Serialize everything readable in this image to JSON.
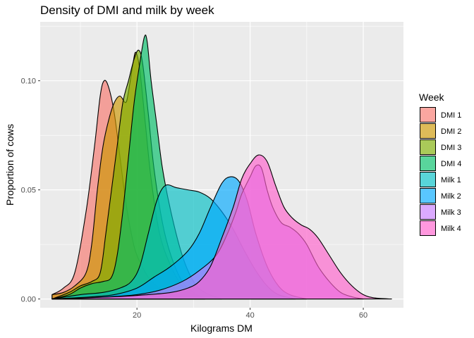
{
  "chart_data": {
    "type": "area",
    "title": "Density of DMI and milk by week",
    "xlabel": "Kilograms DM",
    "ylabel": "Proportion of cows",
    "xlim": [
      2.9,
      67.1
    ],
    "ylim": [
      -0.004,
      0.127
    ],
    "x_ticks": [
      20,
      40,
      60
    ],
    "x_tick_labels": [
      "20",
      "40",
      "60"
    ],
    "y_ticks": [
      0.0,
      0.05,
      0.1
    ],
    "y_tick_labels": [
      "0.00",
      "0.05",
      "0.10"
    ],
    "grid": true,
    "legend": {
      "title": "Week",
      "placement": "right",
      "entries": [
        "DMI 1",
        "DMI 2",
        "DMI 3",
        "DMI 4",
        "Milk 1",
        "Milk 2",
        "Milk 3",
        "Milk 4"
      ]
    },
    "fill_opacity": 0.65,
    "series": [
      {
        "name": "DMI 1",
        "color": "#F8766D",
        "points": [
          [
            5,
            0.002
          ],
          [
            7,
            0.005
          ],
          [
            9,
            0.012
          ],
          [
            11,
            0.04
          ],
          [
            12.5,
            0.07
          ],
          [
            13.5,
            0.093
          ],
          [
            14.2,
            0.1
          ],
          [
            15,
            0.097
          ],
          [
            16,
            0.085
          ],
          [
            17,
            0.065
          ],
          [
            18,
            0.045
          ],
          [
            19,
            0.03
          ],
          [
            20,
            0.02
          ],
          [
            22,
            0.01
          ],
          [
            24,
            0.005
          ],
          [
            26,
            0.002
          ],
          [
            28,
            0
          ]
        ]
      },
      {
        "name": "DMI 2",
        "color": "#CD9600",
        "points": [
          [
            5,
            0.002
          ],
          [
            7,
            0.003
          ],
          [
            9,
            0.006
          ],
          [
            11,
            0.012
          ],
          [
            12,
            0.025
          ],
          [
            13,
            0.05
          ],
          [
            14,
            0.07
          ],
          [
            15,
            0.082
          ],
          [
            16,
            0.09
          ],
          [
            17,
            0.093
          ],
          [
            18,
            0.09
          ],
          [
            18.5,
            0.095
          ],
          [
            19.3,
            0.108
          ],
          [
            19.8,
            0.113
          ],
          [
            20.5,
            0.105
          ],
          [
            21.5,
            0.08
          ],
          [
            22.5,
            0.055
          ],
          [
            24,
            0.03
          ],
          [
            26,
            0.015
          ],
          [
            28,
            0.006
          ],
          [
            30,
            0.002
          ],
          [
            32,
            0
          ]
        ]
      },
      {
        "name": "DMI 3",
        "color": "#7CAE00",
        "points": [
          [
            5,
            0
          ],
          [
            8,
            0.003
          ],
          [
            10,
            0.006
          ],
          [
            12,
            0.008
          ],
          [
            13.5,
            0.012
          ],
          [
            14.5,
            0.03
          ],
          [
            15.5,
            0.05
          ],
          [
            16.5,
            0.07
          ],
          [
            17.5,
            0.09
          ],
          [
            18.5,
            0.1
          ],
          [
            19.5,
            0.11
          ],
          [
            20.3,
            0.114
          ],
          [
            21,
            0.108
          ],
          [
            22,
            0.085
          ],
          [
            23,
            0.06
          ],
          [
            24.5,
            0.035
          ],
          [
            26,
            0.02
          ],
          [
            28,
            0.008
          ],
          [
            30,
            0.003
          ],
          [
            32,
            0
          ]
        ]
      },
      {
        "name": "DMI 4",
        "color": "#00BE67",
        "points": [
          [
            5,
            0
          ],
          [
            8,
            0.002
          ],
          [
            10,
            0.005
          ],
          [
            12,
            0.007
          ],
          [
            14,
            0.008
          ],
          [
            15.5,
            0.01
          ],
          [
            16.5,
            0.02
          ],
          [
            17.5,
            0.04
          ],
          [
            18.5,
            0.065
          ],
          [
            19.5,
            0.09
          ],
          [
            20.5,
            0.108
          ],
          [
            21.3,
            0.12
          ],
          [
            21.8,
            0.118
          ],
          [
            22.5,
            0.1
          ],
          [
            23.5,
            0.08
          ],
          [
            24.5,
            0.06
          ],
          [
            26,
            0.04
          ],
          [
            28,
            0.02
          ],
          [
            30,
            0.008
          ],
          [
            32,
            0.003
          ],
          [
            35,
            0
          ]
        ]
      },
      {
        "name": "Milk 1",
        "color": "#00BFC4",
        "points": [
          [
            5,
            0
          ],
          [
            10,
            0.002
          ],
          [
            14,
            0.003
          ],
          [
            17,
            0.005
          ],
          [
            19,
            0.008
          ],
          [
            20.5,
            0.015
          ],
          [
            22,
            0.03
          ],
          [
            23.5,
            0.045
          ],
          [
            25,
            0.052
          ],
          [
            27,
            0.051
          ],
          [
            29,
            0.05
          ],
          [
            31,
            0.049
          ],
          [
            33,
            0.046
          ],
          [
            35,
            0.04
          ],
          [
            37,
            0.032
          ],
          [
            39,
            0.022
          ],
          [
            41,
            0.013
          ],
          [
            43,
            0.006
          ],
          [
            45,
            0.002
          ],
          [
            48,
            0
          ]
        ]
      },
      {
        "name": "Milk 2",
        "color": "#00A9FF",
        "points": [
          [
            5,
            0
          ],
          [
            12,
            0.001
          ],
          [
            16,
            0.002
          ],
          [
            20,
            0.005
          ],
          [
            23,
            0.01
          ],
          [
            26,
            0.015
          ],
          [
            29,
            0.022
          ],
          [
            31,
            0.03
          ],
          [
            33,
            0.042
          ],
          [
            35,
            0.053
          ],
          [
            36.5,
            0.056
          ],
          [
            38,
            0.054
          ],
          [
            39.5,
            0.045
          ],
          [
            41,
            0.03
          ],
          [
            43,
            0.015
          ],
          [
            45,
            0.006
          ],
          [
            47,
            0.002
          ],
          [
            50,
            0
          ]
        ]
      },
      {
        "name": "Milk 3",
        "color": "#C77CFF",
        "points": [
          [
            5,
            0
          ],
          [
            15,
            0.001
          ],
          [
            20,
            0.002
          ],
          [
            24,
            0.004
          ],
          [
            28,
            0.008
          ],
          [
            31,
            0.013
          ],
          [
            34,
            0.02
          ],
          [
            36,
            0.03
          ],
          [
            37.5,
            0.04
          ],
          [
            38.5,
            0.048
          ],
          [
            40,
            0.056
          ],
          [
            41,
            0.061
          ],
          [
            42,
            0.06
          ],
          [
            43,
            0.05
          ],
          [
            44,
            0.042
          ],
          [
            45.5,
            0.035
          ],
          [
            47,
            0.033
          ],
          [
            48.5,
            0.03
          ],
          [
            50,
            0.025
          ],
          [
            52,
            0.015
          ],
          [
            54,
            0.008
          ],
          [
            56,
            0.003
          ],
          [
            58,
            0.001
          ],
          [
            60,
            0
          ]
        ]
      },
      {
        "name": "Milk 4",
        "color": "#FF61CC",
        "points": [
          [
            5,
            0
          ],
          [
            16,
            0.001
          ],
          [
            22,
            0.002
          ],
          [
            26,
            0.003
          ],
          [
            29,
            0.005
          ],
          [
            31,
            0.008
          ],
          [
            33,
            0.015
          ],
          [
            35,
            0.028
          ],
          [
            37,
            0.042
          ],
          [
            38.5,
            0.055
          ],
          [
            40,
            0.062
          ],
          [
            41.5,
            0.066
          ],
          [
            43,
            0.063
          ],
          [
            44.5,
            0.052
          ],
          [
            46,
            0.042
          ],
          [
            47.5,
            0.037
          ],
          [
            49,
            0.034
          ],
          [
            50.5,
            0.032
          ],
          [
            52,
            0.028
          ],
          [
            54,
            0.02
          ],
          [
            56,
            0.012
          ],
          [
            58,
            0.006
          ],
          [
            60,
            0.002
          ],
          [
            62,
            0.0005
          ],
          [
            65,
            0
          ]
        ]
      }
    ]
  }
}
